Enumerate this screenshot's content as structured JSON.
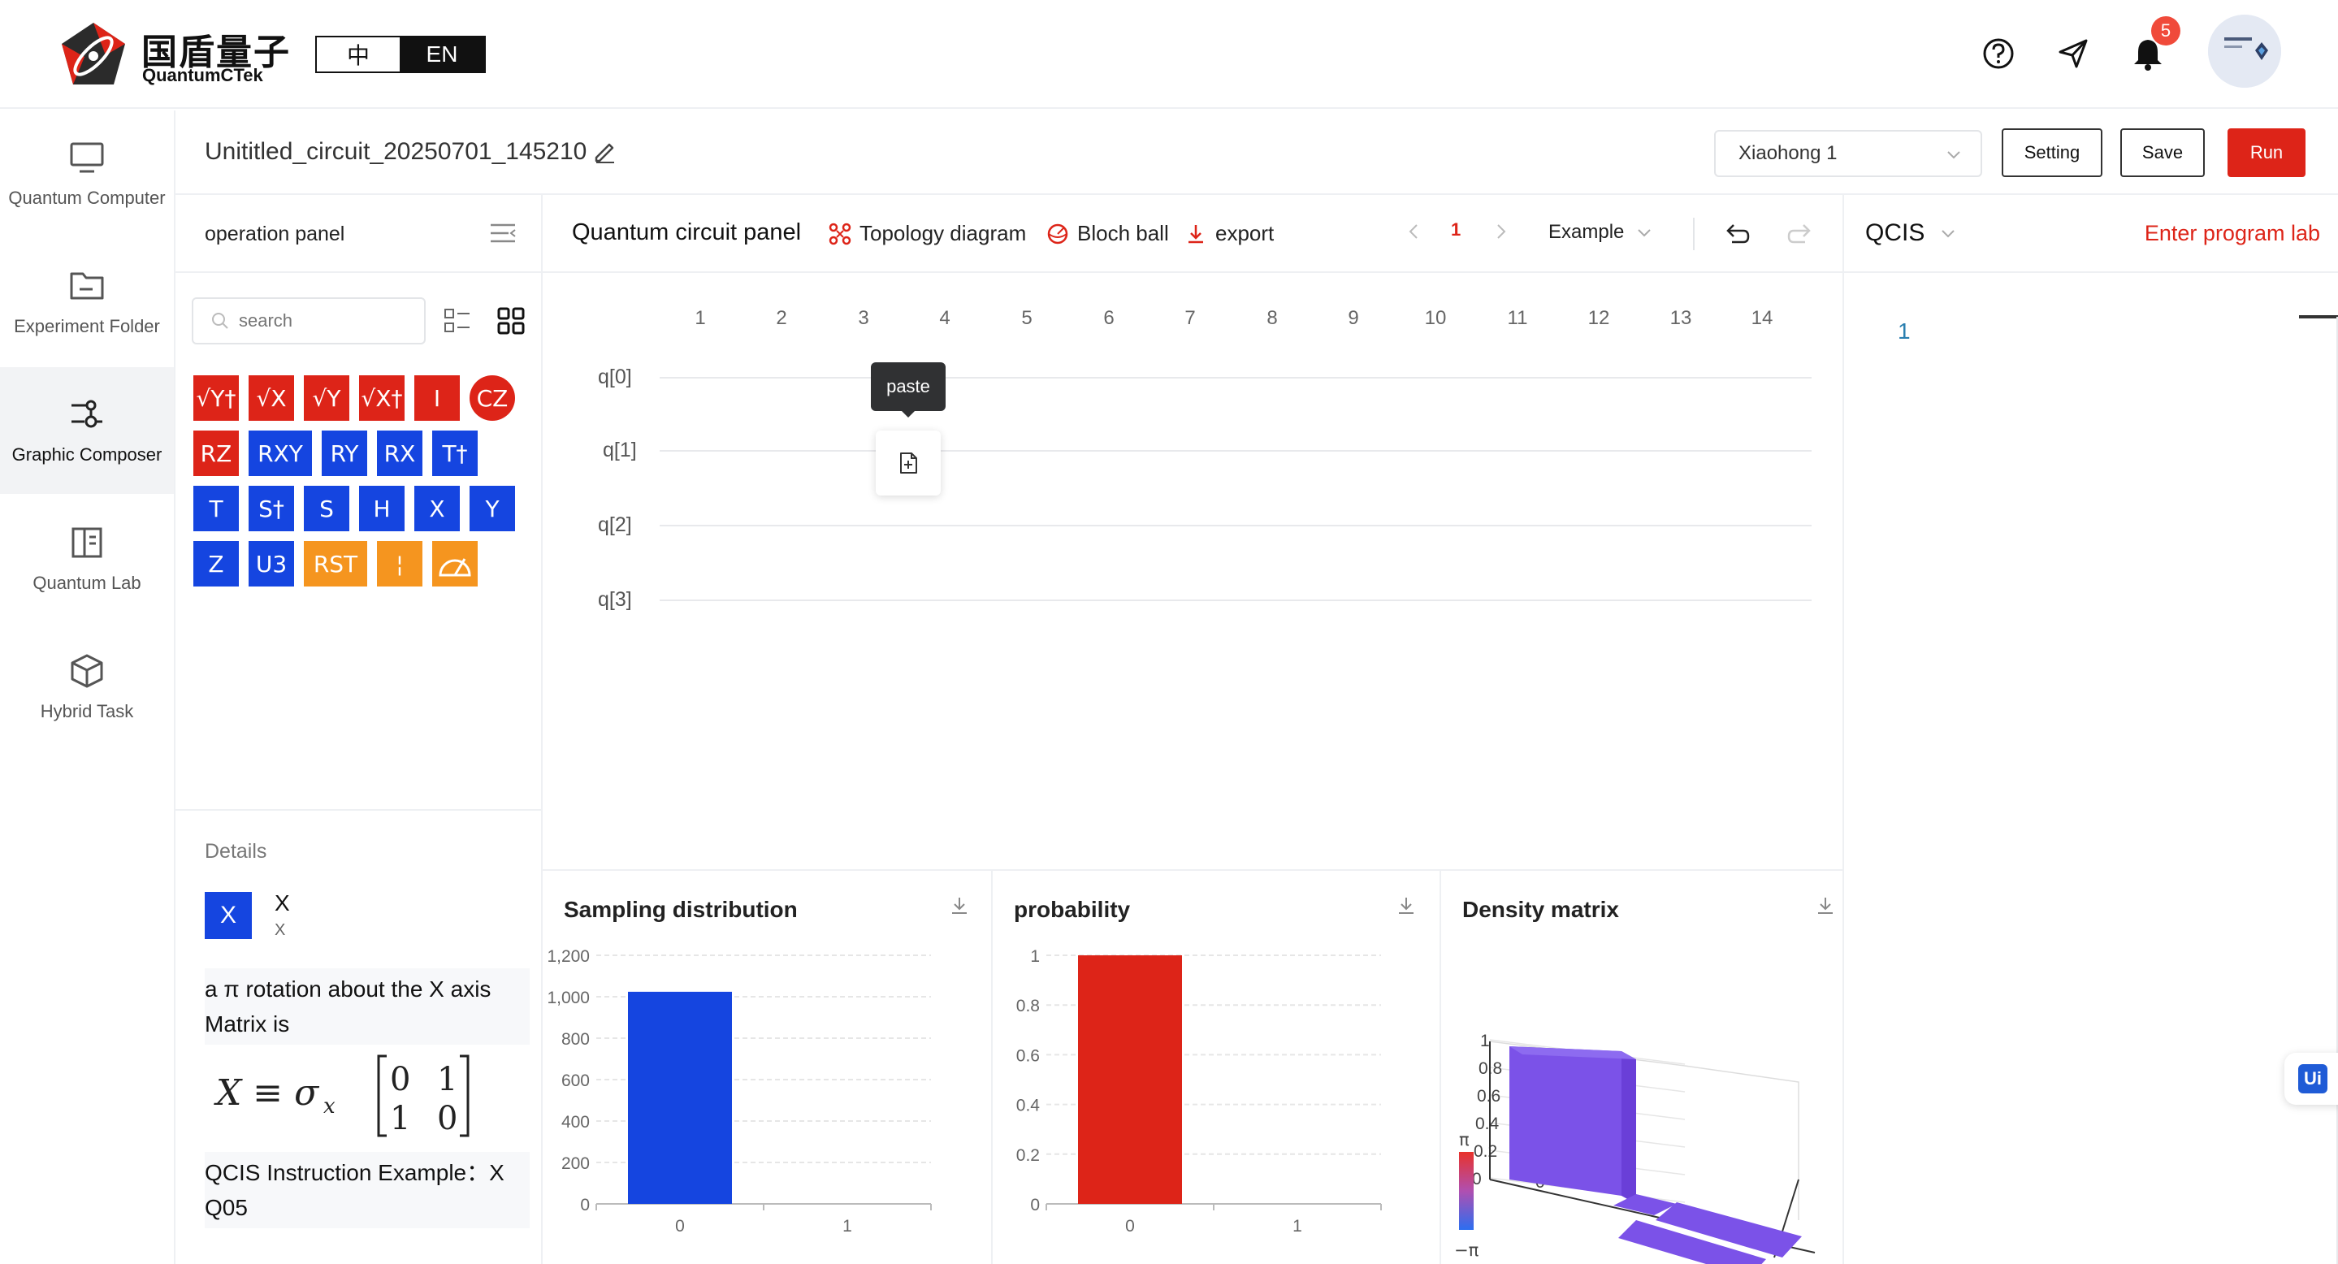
{
  "header": {
    "brand_cn": "国盾量子",
    "brand_en": "QuantumCTek",
    "lang_zh": "中",
    "lang_en": "EN",
    "notifications": "5",
    "icons": [
      "help-icon",
      "send-icon",
      "bell-icon"
    ]
  },
  "sidenav": {
    "items": [
      {
        "label": "Quantum Computer",
        "icon": "monitor-icon"
      },
      {
        "label": "Experiment Folder",
        "icon": "folder-icon"
      },
      {
        "label": "Graphic Composer",
        "icon": "composer-icon"
      },
      {
        "label": "Quantum Lab",
        "icon": "book-icon"
      },
      {
        "label": "Hybrid Task",
        "icon": "cube-icon"
      }
    ],
    "active_index": 2
  },
  "titlebar": {
    "circuit_name": "Unititled_circuit_20250701_145210",
    "machine": "Xiaohong 1",
    "setting_label": "Setting",
    "save_label": "Save",
    "run_label": "Run"
  },
  "operation_panel": {
    "title": "operation panel",
    "search_placeholder": "search",
    "gates": [
      {
        "label": "√Y†",
        "color": "red"
      },
      {
        "label": "√X",
        "color": "red"
      },
      {
        "label": "√Y",
        "color": "red"
      },
      {
        "label": "√X†",
        "color": "red"
      },
      {
        "label": "I",
        "color": "red"
      },
      {
        "label": "CZ",
        "color": "red",
        "shape": "round"
      },
      {
        "label": "RZ",
        "color": "red"
      },
      {
        "label": "RXY",
        "color": "blue"
      },
      {
        "label": "RY",
        "color": "blue"
      },
      {
        "label": "RX",
        "color": "blue"
      },
      {
        "label": "T†",
        "color": "blue"
      },
      {
        "label": "T",
        "color": "blue"
      },
      {
        "label": "S†",
        "color": "blue"
      },
      {
        "label": "S",
        "color": "blue"
      },
      {
        "label": "H",
        "color": "blue"
      },
      {
        "label": "X",
        "color": "blue"
      },
      {
        "label": "Y",
        "color": "blue"
      },
      {
        "label": "Z",
        "color": "blue"
      },
      {
        "label": "U3",
        "color": "blue"
      },
      {
        "label": "RST",
        "color": "orange"
      },
      {
        "label": "¦",
        "color": "orange"
      },
      {
        "label": "",
        "color": "orange",
        "icon": "measure-icon"
      }
    ]
  },
  "details": {
    "title": "Details",
    "gate_symbol": "X",
    "gate_name": "X",
    "gate_sub": "X",
    "description": "a π rotation about the X axis Matrix is",
    "matrix_lhs": "X ≡ σ",
    "matrix_sub": "x",
    "matrix_rows": [
      [
        "0",
        "1"
      ],
      [
        "1",
        "0"
      ]
    ],
    "example": "QCIS Instruction Example：X Q05"
  },
  "circuit_panel": {
    "title": "Quantum circuit panel",
    "links": [
      "Topology diagram",
      "Bloch ball",
      "export"
    ],
    "page": "1",
    "example_label": "Example",
    "columns": [
      "1",
      "2",
      "3",
      "4",
      "5",
      "6",
      "7",
      "8",
      "9",
      "10",
      "11",
      "12",
      "13",
      "14"
    ],
    "qubits": [
      "q[0]",
      "q[1]",
      "q[2]",
      "q[3]"
    ],
    "tooltip": "paste"
  },
  "qcis_panel": {
    "title": "QCIS",
    "link": "Enter program lab",
    "line_number": "1"
  },
  "ui_badge": "Ui",
  "chart_data": [
    {
      "type": "bar",
      "title": "Sampling distribution",
      "categories": [
        "0",
        "1"
      ],
      "values": [
        1024,
        0
      ],
      "ylim": [
        0,
        1200
      ],
      "yticks": [
        "0",
        "200",
        "400",
        "600",
        "800",
        "1,000",
        "1,200"
      ],
      "color": "#1545e0"
    },
    {
      "type": "bar",
      "title": "probability",
      "categories": [
        "0",
        "1"
      ],
      "values": [
        1,
        0
      ],
      "ylim": [
        0,
        1
      ],
      "yticks": [
        "0",
        "0.2",
        "0.4",
        "0.6",
        "0.8",
        "1"
      ],
      "color": "#dd2418"
    },
    {
      "type": "bar",
      "title": "Density matrix",
      "zticks": [
        "0",
        "0.2",
        "0.4",
        "0.6",
        "0.8",
        "1"
      ],
      "axis_tick": "0",
      "colorbar_max": "π",
      "colorbar_min": "−π",
      "values": [
        [
          1,
          0
        ],
        [
          0,
          0
        ]
      ],
      "color": "#7b52e8"
    }
  ]
}
